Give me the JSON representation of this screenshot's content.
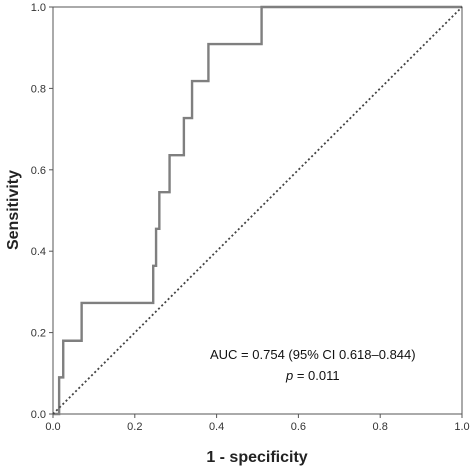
{
  "chart_data": {
    "type": "line",
    "xlabel": "1 - specificity",
    "ylabel": "Sensitivity",
    "xlim": [
      0,
      1
    ],
    "ylim": [
      0,
      1
    ],
    "x_ticks": [
      "0.0",
      "0.2",
      "0.4",
      "0.6",
      "0.8",
      "1.0"
    ],
    "y_ticks": [
      "0.0",
      "0.2",
      "0.4",
      "0.6",
      "0.8",
      "1.0"
    ],
    "grid": false,
    "series": [
      {
        "style": "solid",
        "color": "#7f7f7f",
        "points": [
          [
            0.0,
            0.0
          ],
          [
            0.0,
            0.0
          ],
          [
            0.015,
            0.0
          ],
          [
            0.015,
            0.09
          ],
          [
            0.025,
            0.09
          ],
          [
            0.025,
            0.18
          ],
          [
            0.07,
            0.18
          ],
          [
            0.07,
            0.273
          ],
          [
            0.245,
            0.273
          ],
          [
            0.245,
            0.364
          ],
          [
            0.252,
            0.364
          ],
          [
            0.252,
            0.455
          ],
          [
            0.26,
            0.455
          ],
          [
            0.26,
            0.545
          ],
          [
            0.285,
            0.545
          ],
          [
            0.285,
            0.636
          ],
          [
            0.32,
            0.636
          ],
          [
            0.32,
            0.727
          ],
          [
            0.34,
            0.727
          ],
          [
            0.34,
            0.818
          ],
          [
            0.38,
            0.818
          ],
          [
            0.38,
            0.909
          ],
          [
            0.51,
            0.909
          ],
          [
            0.51,
            1.0
          ],
          [
            1.0,
            1.0
          ]
        ]
      },
      {
        "style": "dotted",
        "color": "#444444",
        "points": [
          [
            0,
            0
          ],
          [
            1,
            1
          ]
        ]
      }
    ],
    "annotations": {
      "auc_text": "AUC = 0.754 (95% CI 0.618–0.844)",
      "p_label": "p",
      "p_value": " = 0.011"
    }
  }
}
